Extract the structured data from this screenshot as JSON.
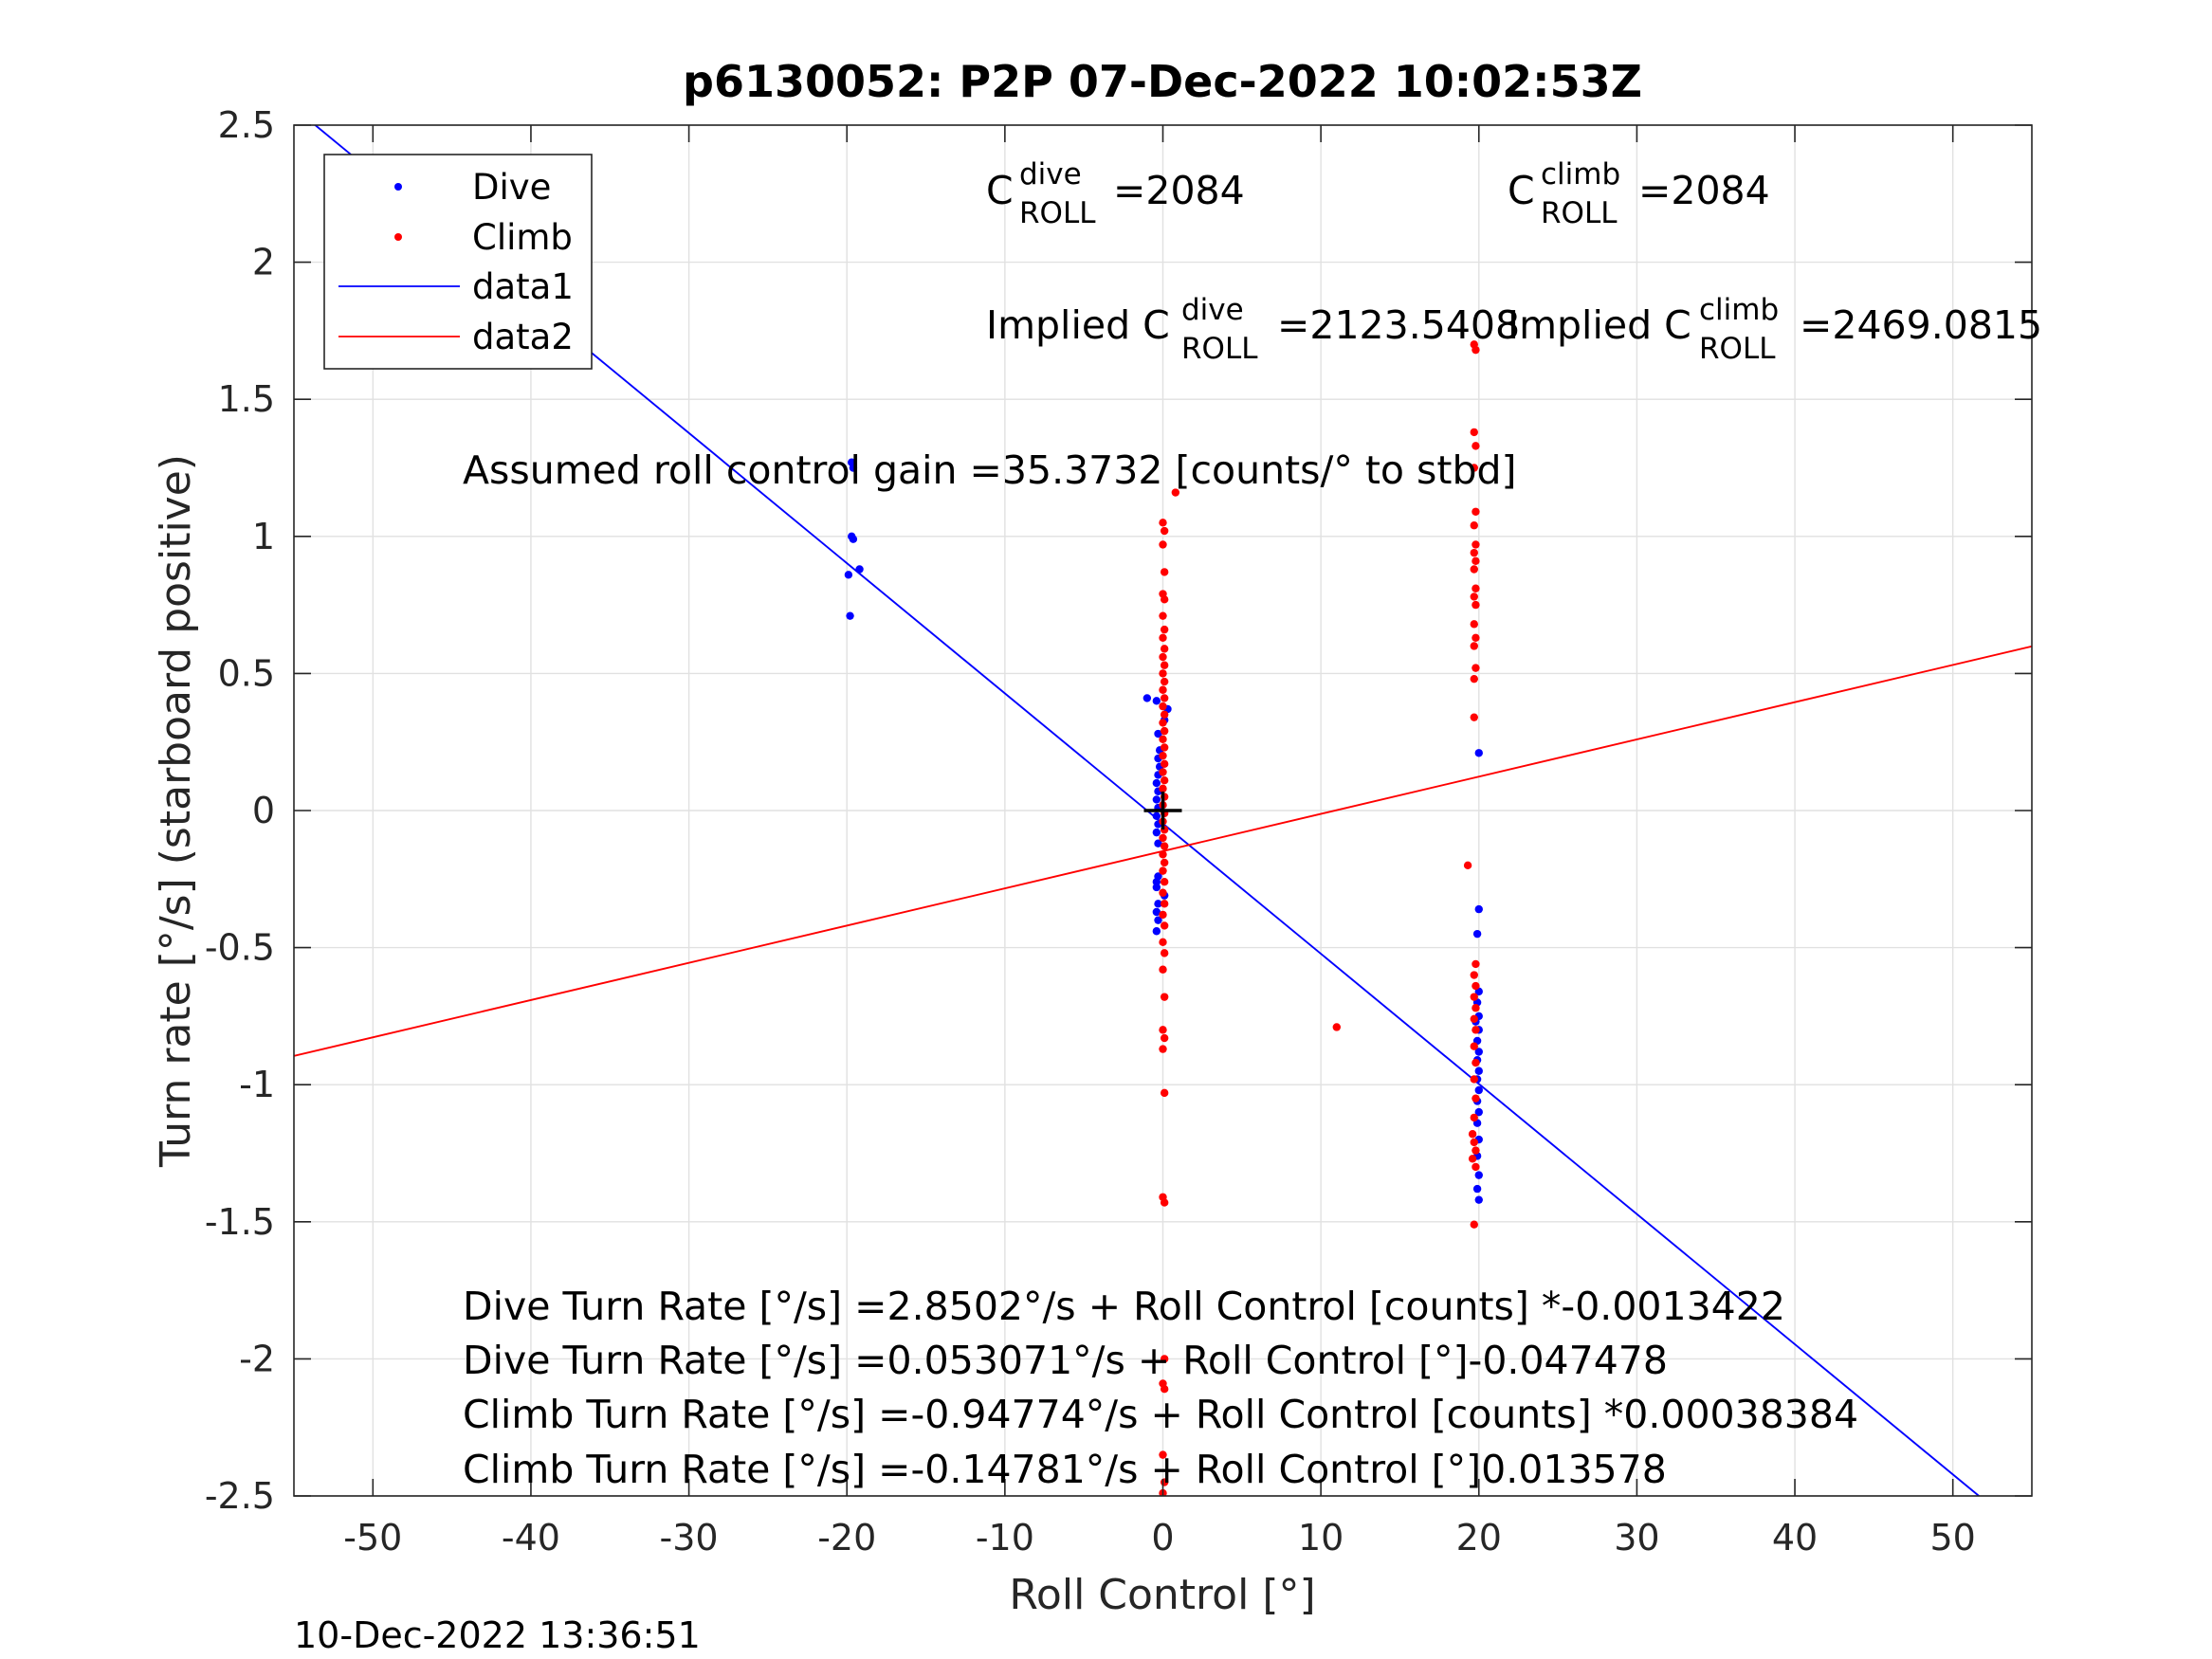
{
  "chart_data": {
    "type": "scatter",
    "title": "p6130052: P2P 07-Dec-2022 10:02:53Z",
    "xlabel": "Roll Control [°]",
    "ylabel": "Turn rate [°/s] (starboard positive)",
    "xlim": [
      -55,
      55
    ],
    "ylim": [
      -2.5,
      2.5
    ],
    "xticks": [
      -50,
      -40,
      -30,
      -20,
      -10,
      0,
      10,
      20,
      30,
      40,
      50
    ],
    "xtick_labels": [
      "-50",
      "-40",
      "-30",
      "-20",
      "-10",
      "0",
      "10",
      "20",
      "30",
      "40",
      "50"
    ],
    "yticks": [
      2.5,
      2,
      1.5,
      1,
      0.5,
      0,
      -0.5,
      -1,
      -1.5,
      -2,
      -2.5
    ],
    "ytick_labels": [
      "2.5",
      "2",
      "1.5",
      "1",
      "0.5",
      "0",
      "-0.5",
      "-1",
      "-1.5",
      "-2",
      "-2.5"
    ],
    "grid": true,
    "legend_position": "top-left",
    "legend": [
      "Dive",
      "Climb",
      "data1",
      "data2"
    ],
    "series": [
      {
        "name": "Dive",
        "kind": "points",
        "color": "#0000ff",
        "points": [
          [
            -19.7,
            1.27
          ],
          [
            -19.6,
            1.25
          ],
          [
            -19.7,
            1.0
          ],
          [
            -19.6,
            0.99
          ],
          [
            -19.9,
            0.86
          ],
          [
            -19.2,
            0.88
          ],
          [
            -19.8,
            0.71
          ],
          [
            -1.0,
            0.41
          ],
          [
            -0.4,
            0.4
          ],
          [
            0.3,
            0.37
          ],
          [
            0.1,
            0.33
          ],
          [
            -0.3,
            0.28
          ],
          [
            -0.2,
            0.22
          ],
          [
            -0.3,
            0.19
          ],
          [
            -0.2,
            0.16
          ],
          [
            -0.3,
            0.13
          ],
          [
            -0.4,
            0.1
          ],
          [
            -0.3,
            0.07
          ],
          [
            -0.4,
            0.04
          ],
          [
            -0.3,
            0.01
          ],
          [
            -0.4,
            -0.02
          ],
          [
            -0.3,
            -0.05
          ],
          [
            -0.4,
            -0.08
          ],
          [
            -0.3,
            -0.12
          ],
          [
            -0.3,
            -0.24
          ],
          [
            -0.4,
            -0.26
          ],
          [
            -0.4,
            -0.28
          ],
          [
            -0.3,
            -0.34
          ],
          [
            -0.4,
            -0.37
          ],
          [
            -0.3,
            -0.4
          ],
          [
            -0.4,
            -0.44
          ],
          [
            0.1,
            -0.31
          ],
          [
            20.0,
            0.21
          ],
          [
            20.0,
            -0.36
          ],
          [
            19.9,
            -0.45
          ],
          [
            20.0,
            -0.66
          ],
          [
            19.9,
            -0.7
          ],
          [
            20.0,
            -0.75
          ],
          [
            19.8,
            -0.77
          ],
          [
            20.0,
            -0.8
          ],
          [
            19.9,
            -0.84
          ],
          [
            20.0,
            -0.88
          ],
          [
            19.9,
            -0.91
          ],
          [
            20.0,
            -0.95
          ],
          [
            19.9,
            -0.98
          ],
          [
            20.0,
            -1.02
          ],
          [
            19.9,
            -1.06
          ],
          [
            20.0,
            -1.1
          ],
          [
            19.9,
            -1.14
          ],
          [
            20.0,
            -1.2
          ],
          [
            19.9,
            -1.26
          ],
          [
            20.0,
            -1.33
          ],
          [
            19.9,
            -1.38
          ],
          [
            20.0,
            -1.42
          ]
        ]
      },
      {
        "name": "Climb",
        "kind": "points",
        "color": "#ff0000",
        "points": [
          [
            0.8,
            1.16
          ],
          [
            0.0,
            1.05
          ],
          [
            0.1,
            1.02
          ],
          [
            0.0,
            0.97
          ],
          [
            0.1,
            0.87
          ],
          [
            0.0,
            0.79
          ],
          [
            0.1,
            0.77
          ],
          [
            0.0,
            0.71
          ],
          [
            0.1,
            0.66
          ],
          [
            0.0,
            0.63
          ],
          [
            0.1,
            0.59
          ],
          [
            0.0,
            0.56
          ],
          [
            0.1,
            0.53
          ],
          [
            0.0,
            0.5
          ],
          [
            0.1,
            0.47
          ],
          [
            0.0,
            0.44
          ],
          [
            0.1,
            0.41
          ],
          [
            0.0,
            0.38
          ],
          [
            0.1,
            0.35
          ],
          [
            0.0,
            0.32
          ],
          [
            0.1,
            0.29
          ],
          [
            0.0,
            0.26
          ],
          [
            0.1,
            0.23
          ],
          [
            0.0,
            0.2
          ],
          [
            0.1,
            0.17
          ],
          [
            0.0,
            0.14
          ],
          [
            0.1,
            0.11
          ],
          [
            0.0,
            0.08
          ],
          [
            0.1,
            0.05
          ],
          [
            0.0,
            0.02
          ],
          [
            0.1,
            -0.01
          ],
          [
            0.0,
            -0.04
          ],
          [
            0.1,
            -0.07
          ],
          [
            0.0,
            -0.1
          ],
          [
            0.1,
            -0.13
          ],
          [
            0.0,
            -0.16
          ],
          [
            0.1,
            -0.19
          ],
          [
            0.0,
            -0.22
          ],
          [
            0.1,
            -0.26
          ],
          [
            0.0,
            -0.3
          ],
          [
            0.1,
            -0.34
          ],
          [
            0.0,
            -0.38
          ],
          [
            0.1,
            -0.42
          ],
          [
            0.0,
            -0.48
          ],
          [
            0.1,
            -0.52
          ],
          [
            0.0,
            -0.58
          ],
          [
            0.1,
            -0.68
          ],
          [
            0.0,
            -0.8
          ],
          [
            0.1,
            -0.83
          ],
          [
            0.0,
            -0.87
          ],
          [
            0.1,
            -1.03
          ],
          [
            0.0,
            -1.41
          ],
          [
            0.1,
            -1.43
          ],
          [
            0.1,
            -2.0
          ],
          [
            0.0,
            -2.09
          ],
          [
            0.1,
            -2.11
          ],
          [
            0.0,
            -2.35
          ],
          [
            0.1,
            -2.45
          ],
          [
            0.0,
            -2.49
          ],
          [
            11.0,
            -0.79
          ],
          [
            19.3,
            -0.2
          ],
          [
            19.7,
            1.7
          ],
          [
            19.8,
            1.68
          ],
          [
            19.7,
            1.38
          ],
          [
            19.8,
            1.33
          ],
          [
            19.7,
            1.25
          ],
          [
            19.8,
            1.09
          ],
          [
            19.7,
            1.04
          ],
          [
            19.8,
            0.97
          ],
          [
            19.7,
            0.94
          ],
          [
            19.8,
            0.91
          ],
          [
            19.7,
            0.88
          ],
          [
            19.8,
            0.81
          ],
          [
            19.7,
            0.78
          ],
          [
            19.8,
            0.75
          ],
          [
            19.7,
            0.68
          ],
          [
            19.8,
            0.63
          ],
          [
            19.7,
            0.6
          ],
          [
            19.8,
            0.52
          ],
          [
            19.7,
            0.48
          ],
          [
            19.7,
            0.34
          ],
          [
            19.8,
            -0.56
          ],
          [
            19.7,
            -0.6
          ],
          [
            19.8,
            -0.64
          ],
          [
            19.7,
            -0.68
          ],
          [
            19.8,
            -0.72
          ],
          [
            19.7,
            -0.76
          ],
          [
            19.8,
            -0.8
          ],
          [
            19.7,
            -0.86
          ],
          [
            19.8,
            -0.92
          ],
          [
            19.7,
            -0.98
          ],
          [
            19.8,
            -1.05
          ],
          [
            19.7,
            -1.12
          ],
          [
            19.6,
            -1.18
          ],
          [
            19.7,
            -1.21
          ],
          [
            19.8,
            -1.24
          ],
          [
            19.6,
            -1.27
          ],
          [
            19.8,
            -1.3
          ],
          [
            19.7,
            -1.51
          ]
        ]
      },
      {
        "name": "data1",
        "kind": "line",
        "color": "#0000ff",
        "points": [
          [
            -55,
            2.564
          ],
          [
            55,
            -2.659
          ]
        ]
      },
      {
        "name": "data2",
        "kind": "line",
        "color": "#ff0000",
        "points": [
          [
            -55,
            -0.895
          ],
          [
            55,
            0.599
          ]
        ]
      }
    ],
    "origin_marker": {
      "x": 0,
      "y": 0
    }
  },
  "annotations": {
    "c_dive_prefix": "C",
    "c_dive_sup": "dive",
    "c_dive_sub": "ROLL",
    "c_dive_value": "=2084",
    "c_climb_prefix": "C",
    "c_climb_sup": "climb",
    "c_climb_sub": "ROLL",
    "c_climb_value": "=2084",
    "implied_dive_prefix": "Implied C",
    "implied_dive_sup": "dive",
    "implied_dive_sub": "ROLL",
    "implied_dive_value": "=2123.5408",
    "implied_climb_prefix": "Implied C",
    "implied_climb_sup": "climb",
    "implied_climb_sub": "ROLL",
    "implied_climb_value": "=2469.0815",
    "gain": "Assumed roll control gain =35.3732 [counts/° to stbd]",
    "eq1": "Dive Turn Rate [°/s] =2.8502°/s + Roll Control [counts] *-0.0013422",
    "eq2": "Dive Turn Rate [°/s] =0.053071°/s + Roll Control [°]-0.047478",
    "eq3": "Climb Turn Rate [°/s] =-0.94774°/s + Roll Control [counts] *0.00038384",
    "eq4": "Climb Turn Rate [°/s] =-0.14781°/s + Roll Control [°]0.013578"
  },
  "footer": {
    "timestamp": "10-Dec-2022 13:36:51"
  }
}
